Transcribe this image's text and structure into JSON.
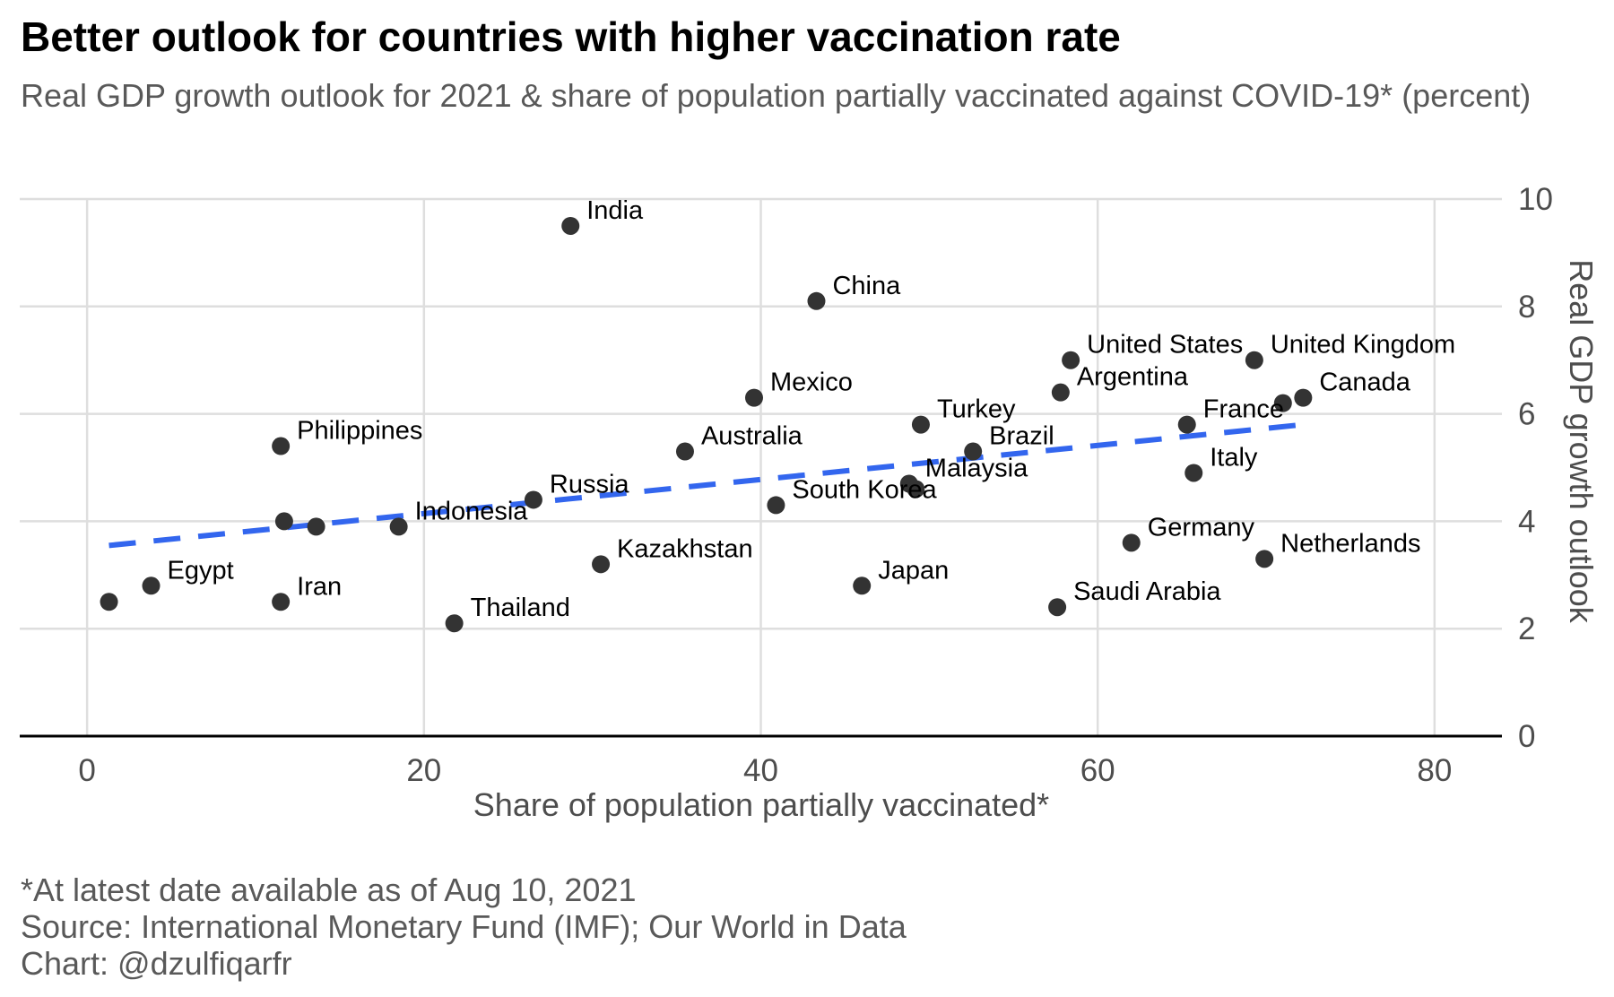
{
  "chart_data": {
    "type": "scatter",
    "title": "Better outlook for countries with higher vaccination rate",
    "subtitle": "Real GDP growth outlook for 2021 & share of population partially vaccinated against COVID-19* (percent)",
    "xlabel": "Share of population partially vaccinated*",
    "ylabel": "Real GDP growth outlook",
    "xlim": [
      -4,
      84
    ],
    "ylim": [
      0,
      10
    ],
    "x_ticks": [
      0,
      20,
      40,
      60,
      80
    ],
    "y_ticks": [
      0,
      2,
      4,
      6,
      8,
      10
    ],
    "y_axis_position": "right",
    "grid": true,
    "point_color": "#333333",
    "trend_color": "#3366ee",
    "points": [
      {
        "label": "",
        "x": 1.3,
        "y": 2.5
      },
      {
        "label": "Egypt",
        "x": 3.8,
        "y": 2.8
      },
      {
        "label": "Philippines",
        "x": 11.5,
        "y": 5.4
      },
      {
        "label": "",
        "x": 11.7,
        "y": 4.0
      },
      {
        "label": "Iran",
        "x": 11.5,
        "y": 2.5
      },
      {
        "label": "",
        "x": 13.6,
        "y": 3.9
      },
      {
        "label": "Indonesia",
        "x": 18.5,
        "y": 3.9
      },
      {
        "label": "Thailand",
        "x": 21.8,
        "y": 2.1
      },
      {
        "label": "Russia",
        "x": 26.5,
        "y": 4.4
      },
      {
        "label": "India",
        "x": 28.7,
        "y": 9.5
      },
      {
        "label": "Kazakhstan",
        "x": 30.5,
        "y": 3.2
      },
      {
        "label": "Australia",
        "x": 35.5,
        "y": 5.3
      },
      {
        "label": "Mexico",
        "x": 39.6,
        "y": 6.3
      },
      {
        "label": "South Korea",
        "x": 40.9,
        "y": 4.3
      },
      {
        "label": "China",
        "x": 43.3,
        "y": 8.1
      },
      {
        "label": "Japan",
        "x": 46.0,
        "y": 2.8
      },
      {
        "label": "Malaysia",
        "x": 48.8,
        "y": 4.7
      },
      {
        "label": "",
        "x": 49.2,
        "y": 4.6
      },
      {
        "label": "Turkey",
        "x": 49.5,
        "y": 5.8
      },
      {
        "label": "Brazil",
        "x": 52.6,
        "y": 5.3
      },
      {
        "label": "Saudi Arabia",
        "x": 57.6,
        "y": 2.4
      },
      {
        "label": "Argentina",
        "x": 57.8,
        "y": 6.4
      },
      {
        "label": "United States",
        "x": 58.4,
        "y": 7.0
      },
      {
        "label": "Germany",
        "x": 62.0,
        "y": 3.6
      },
      {
        "label": "France",
        "x": 65.3,
        "y": 5.8
      },
      {
        "label": "Italy",
        "x": 65.7,
        "y": 4.9
      },
      {
        "label": "United Kingdom",
        "x": 69.3,
        "y": 7.0
      },
      {
        "label": "Netherlands",
        "x": 69.9,
        "y": 3.3
      },
      {
        "label": "",
        "x": 71.0,
        "y": 6.2
      },
      {
        "label": "Canada",
        "x": 72.2,
        "y": 6.3
      }
    ],
    "trend_line": {
      "x": [
        1.3,
        72.2
      ],
      "y": [
        3.55,
        5.8
      ]
    }
  },
  "caption": {
    "note": "*At latest date available as of Aug 10, 2021",
    "source": "Source: International Monetary Fund (IMF); Our World in Data",
    "credit": "Chart: @dzulfiqarfr"
  }
}
